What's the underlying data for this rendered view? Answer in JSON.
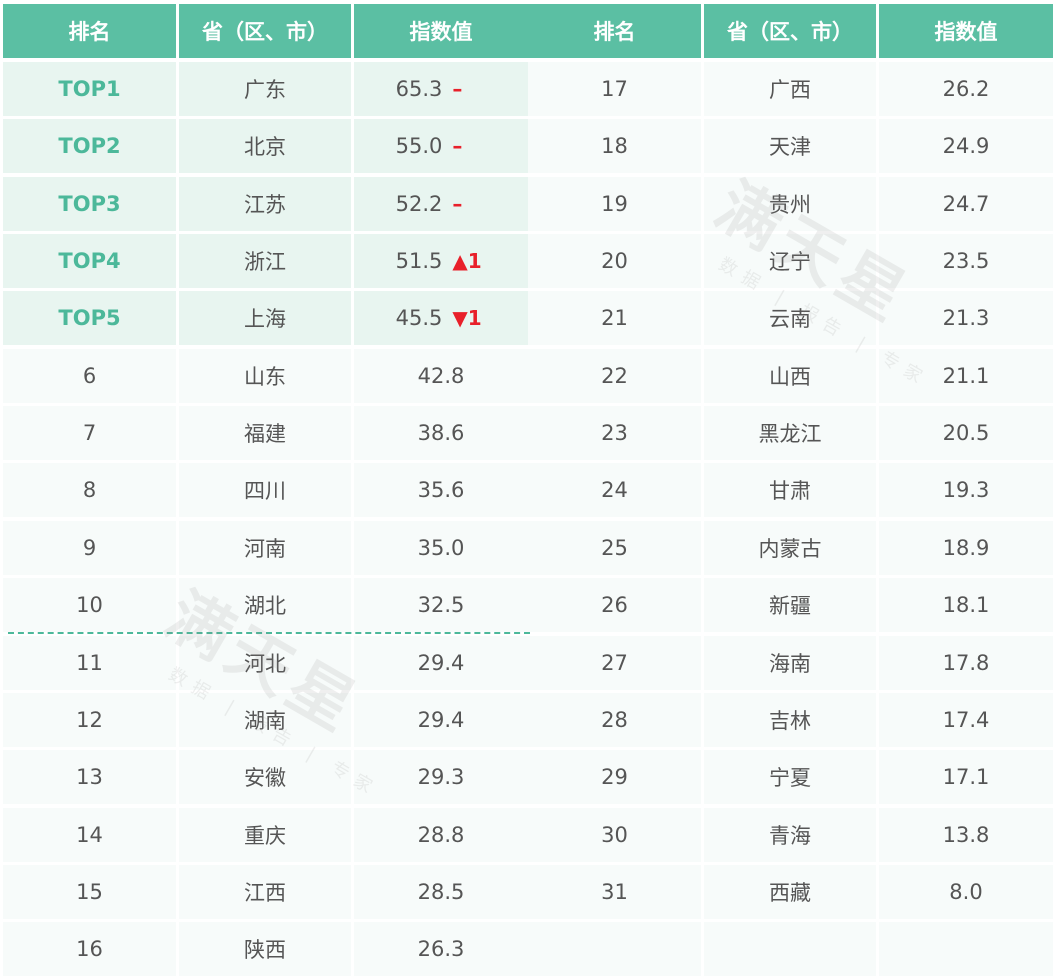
{
  "headers": {
    "rank": "排名",
    "province": "省（区、市）",
    "index": "指数值"
  },
  "left_rows": [
    {
      "rank": "TOP1",
      "province": "广东",
      "value": "65.3",
      "change": "–",
      "top": true
    },
    {
      "rank": "TOP2",
      "province": "北京",
      "value": "55.0",
      "change": "–",
      "top": true
    },
    {
      "rank": "TOP3",
      "province": "江苏",
      "value": "52.2",
      "change": "–",
      "top": true
    },
    {
      "rank": "TOP4",
      "province": "浙江",
      "value": "51.5",
      "change": "▲1",
      "top": true
    },
    {
      "rank": "TOP5",
      "province": "上海",
      "value": "45.5",
      "change": "▼1",
      "top": true
    },
    {
      "rank": "6",
      "province": "山东",
      "value": "42.8"
    },
    {
      "rank": "7",
      "province": "福建",
      "value": "38.6"
    },
    {
      "rank": "8",
      "province": "四川",
      "value": "35.6"
    },
    {
      "rank": "9",
      "province": "河南",
      "value": "35.0"
    },
    {
      "rank": "10",
      "province": "湖北",
      "value": "32.5"
    },
    {
      "rank": "11",
      "province": "河北",
      "value": "29.4"
    },
    {
      "rank": "12",
      "province": "湖南",
      "value": "29.4"
    },
    {
      "rank": "13",
      "province": "安徽",
      "value": "29.3"
    },
    {
      "rank": "14",
      "province": "重庆",
      "value": "28.8"
    },
    {
      "rank": "15",
      "province": "江西",
      "value": "28.5"
    },
    {
      "rank": "16",
      "province": "陕西",
      "value": "26.3"
    }
  ],
  "right_rows": [
    {
      "rank": "17",
      "province": "广西",
      "value": "26.2"
    },
    {
      "rank": "18",
      "province": "天津",
      "value": "24.9"
    },
    {
      "rank": "19",
      "province": "贵州",
      "value": "24.7"
    },
    {
      "rank": "20",
      "province": "辽宁",
      "value": "23.5"
    },
    {
      "rank": "21",
      "province": "云南",
      "value": "21.3"
    },
    {
      "rank": "22",
      "province": "山西",
      "value": "21.1"
    },
    {
      "rank": "23",
      "province": "黑龙江",
      "value": "20.5"
    },
    {
      "rank": "24",
      "province": "甘肃",
      "value": "19.3"
    },
    {
      "rank": "25",
      "province": "内蒙古",
      "value": "18.9"
    },
    {
      "rank": "26",
      "province": "新疆",
      "value": "18.1"
    },
    {
      "rank": "27",
      "province": "海南",
      "value": "17.8"
    },
    {
      "rank": "28",
      "province": "吉林",
      "value": "17.4"
    },
    {
      "rank": "29",
      "province": "宁夏",
      "value": "17.1"
    },
    {
      "rank": "30",
      "province": "青海",
      "value": "13.8"
    },
    {
      "rank": "31",
      "province": "西藏",
      "value": "8.0"
    },
    {
      "rank": "",
      "province": "",
      "value": ""
    }
  ],
  "watermark": {
    "title": "满天星",
    "subtitle": "数据 | 报告 | 专家"
  },
  "colors": {
    "header_bg": "#5bbfa3",
    "top_row_bg": "#e8f5f0",
    "top_rank_text": "#4cb89a",
    "change_red": "#e8202a",
    "divider_dashed": "#4cb89a"
  }
}
